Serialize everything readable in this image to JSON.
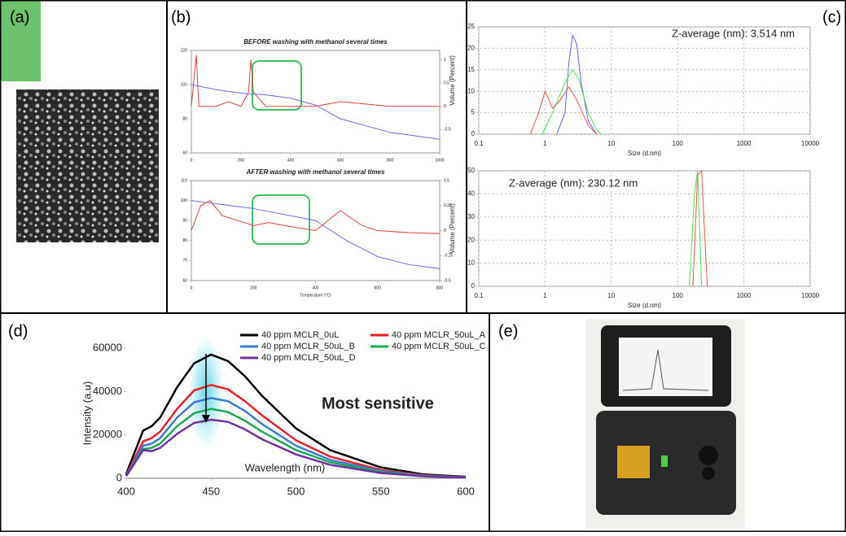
{
  "panels": [
    "(a)",
    "(b)",
    "(c)",
    "(d)",
    "(e)"
  ],
  "chart_data": [
    {
      "type": "line",
      "title": "BEFORE washing with methanol several times",
      "xlim": [
        0,
        1000
      ],
      "xticks": [
        0,
        200,
        400,
        600,
        800,
        1000
      ],
      "ylim": [
        60,
        120
      ],
      "yticks": [
        60,
        80,
        100,
        120
      ],
      "y2lim": [
        -1,
        1.2
      ],
      "y2ticks": [
        -0.5,
        0,
        0.5,
        1
      ],
      "series": [
        {
          "color": "#6a6ae0",
          "x": [
            0,
            100,
            200,
            300,
            400,
            500,
            600,
            800,
            1000
          ],
          "values": [
            100,
            97,
            95,
            94,
            92,
            88,
            80,
            72,
            68
          ]
        },
        {
          "color": "#e04040",
          "axis": "y2",
          "x": [
            0,
            20,
            30,
            100,
            150,
            200,
            230,
            240,
            250,
            300,
            400,
            500,
            600,
            800,
            1000
          ],
          "values": [
            0,
            1.1,
            0,
            0,
            0.1,
            0,
            0.3,
            1,
            0.3,
            0,
            0,
            0,
            0.1,
            0,
            0
          ]
        }
      ]
    },
    {
      "type": "line",
      "title": "AFTER washing with methanol several times",
      "xlabel": "Temperature (°C)",
      "xlim": [
        0,
        800
      ],
      "xticks": [
        0,
        200,
        400,
        600,
        800
      ],
      "ylim": [
        60,
        110
      ],
      "yticks": [
        60,
        70,
        80,
        90,
        100,
        110
      ],
      "y2lim": [
        -0.5,
        0.5
      ],
      "y2ticks": [
        -0.5,
        -0.25,
        0,
        0.25,
        0.5
      ],
      "series": [
        {
          "color": "#6a6ae0",
          "x": [
            0,
            50,
            100,
            200,
            300,
            400,
            500,
            600,
            700,
            800
          ],
          "values": [
            100,
            99,
            98,
            96,
            93,
            90,
            80,
            72,
            68,
            66
          ]
        },
        {
          "color": "#e04040",
          "axis": "y2",
          "x": [
            0,
            30,
            60,
            100,
            200,
            250,
            300,
            400,
            480,
            550,
            600,
            700,
            800
          ],
          "values": [
            0,
            0.25,
            0.3,
            0.15,
            0.05,
            0.08,
            0.05,
            0,
            0.2,
            0.05,
            0,
            -0.02,
            -0.03
          ]
        }
      ]
    },
    {
      "type": "line",
      "xscale": "log",
      "grid": true,
      "annotation": "Z-average (nm): 3.514 nm",
      "xlabel": "Size (d.nm)",
      "ylabel": "Volume (Percent)",
      "xlim": [
        0.1,
        10000
      ],
      "xticks": [
        0.1,
        1,
        10,
        100,
        1000,
        10000
      ],
      "ylim": [
        0,
        25
      ],
      "yticks": [
        0,
        5,
        10,
        15,
        20,
        25
      ],
      "series": [
        {
          "color": "#6060f0",
          "x": [
            1.5,
            2,
            2.3,
            2.6,
            3,
            3.5,
            4.5,
            6
          ],
          "values": [
            0,
            5,
            17,
            23,
            21,
            12,
            3,
            0
          ]
        },
        {
          "color": "#50e050",
          "x": [
            0.9,
            1.3,
            2,
            2.6,
            3.2,
            4.5,
            6,
            7
          ],
          "values": [
            0,
            5,
            12,
            15,
            13,
            5,
            1,
            0
          ]
        },
        {
          "color": "#f05050",
          "x": [
            0.6,
            0.8,
            1,
            1.3,
            1.7,
            2.3,
            3,
            4.5,
            6
          ],
          "values": [
            0,
            5,
            10,
            6,
            8,
            11,
            8,
            2,
            0
          ]
        }
      ]
    },
    {
      "type": "line",
      "xscale": "log",
      "grid": true,
      "annotation": "Z-average (nm): 230.12 nm",
      "xlabel": "Size (d.nm)",
      "ylabel": "Volume (Percent)",
      "xlim": [
        0.1,
        10000
      ],
      "xticks": [
        0.1,
        1,
        10,
        100,
        1000,
        10000
      ],
      "ylim": [
        0,
        50
      ],
      "yticks": [
        0,
        10,
        20,
        30,
        40,
        50
      ],
      "series": [
        {
          "color": "#50e050",
          "x": [
            150,
            180,
            200,
            230
          ],
          "values": [
            0,
            40,
            50,
            0
          ]
        },
        {
          "color": "#f05050",
          "x": [
            170,
            200,
            230,
            280
          ],
          "values": [
            0,
            48,
            50,
            0
          ]
        }
      ]
    },
    {
      "type": "line",
      "annotation": "Most sensitive",
      "xlabel": "Wavelength (nm)",
      "ylabel": "Intensity (a.u)",
      "xlim": [
        400,
        600
      ],
      "xticks": [
        400,
        450,
        500,
        550,
        600
      ],
      "ylim": [
        0,
        60000
      ],
      "yticks": [
        0,
        20000,
        40000,
        60000
      ],
      "x": [
        400,
        410,
        415,
        420,
        430,
        440,
        450,
        460,
        470,
        480,
        500,
        520,
        550,
        575,
        600
      ],
      "series": [
        {
          "name": "40 ppm MCLR_0uL",
          "color": "#000000",
          "values": [
            2000,
            22000,
            24000,
            28000,
            42000,
            53000,
            57000,
            54000,
            47000,
            38000,
            23000,
            13000,
            5000,
            1800,
            700
          ]
        },
        {
          "name": "40 ppm MCLR_50uL_A",
          "color": "#e8202a",
          "values": [
            1500,
            17000,
            18500,
            21500,
            32000,
            40500,
            43000,
            41000,
            35500,
            29000,
            17500,
            10000,
            3800,
            1400,
            500
          ]
        },
        {
          "name": "40 ppm MCLR_50uL_B",
          "color": "#3a7bd5",
          "values": [
            1300,
            15000,
            16000,
            18500,
            28000,
            35000,
            37000,
            35500,
            31000,
            25000,
            15000,
            8500,
            3300,
            1200,
            450
          ]
        },
        {
          "name": "40 ppm MCLR_50uL_C",
          "color": "#1aa850",
          "values": [
            1100,
            13500,
            14000,
            16000,
            24000,
            30000,
            32000,
            30500,
            26500,
            21500,
            13000,
            7400,
            2800,
            1000,
            400
          ]
        },
        {
          "name": "40 ppm MCLR_50uL_D",
          "color": "#7030a0",
          "values": [
            1000,
            13000,
            12500,
            14000,
            20500,
            25500,
            27000,
            26000,
            22500,
            18000,
            11000,
            6200,
            2400,
            900,
            350
          ]
        }
      ]
    }
  ]
}
